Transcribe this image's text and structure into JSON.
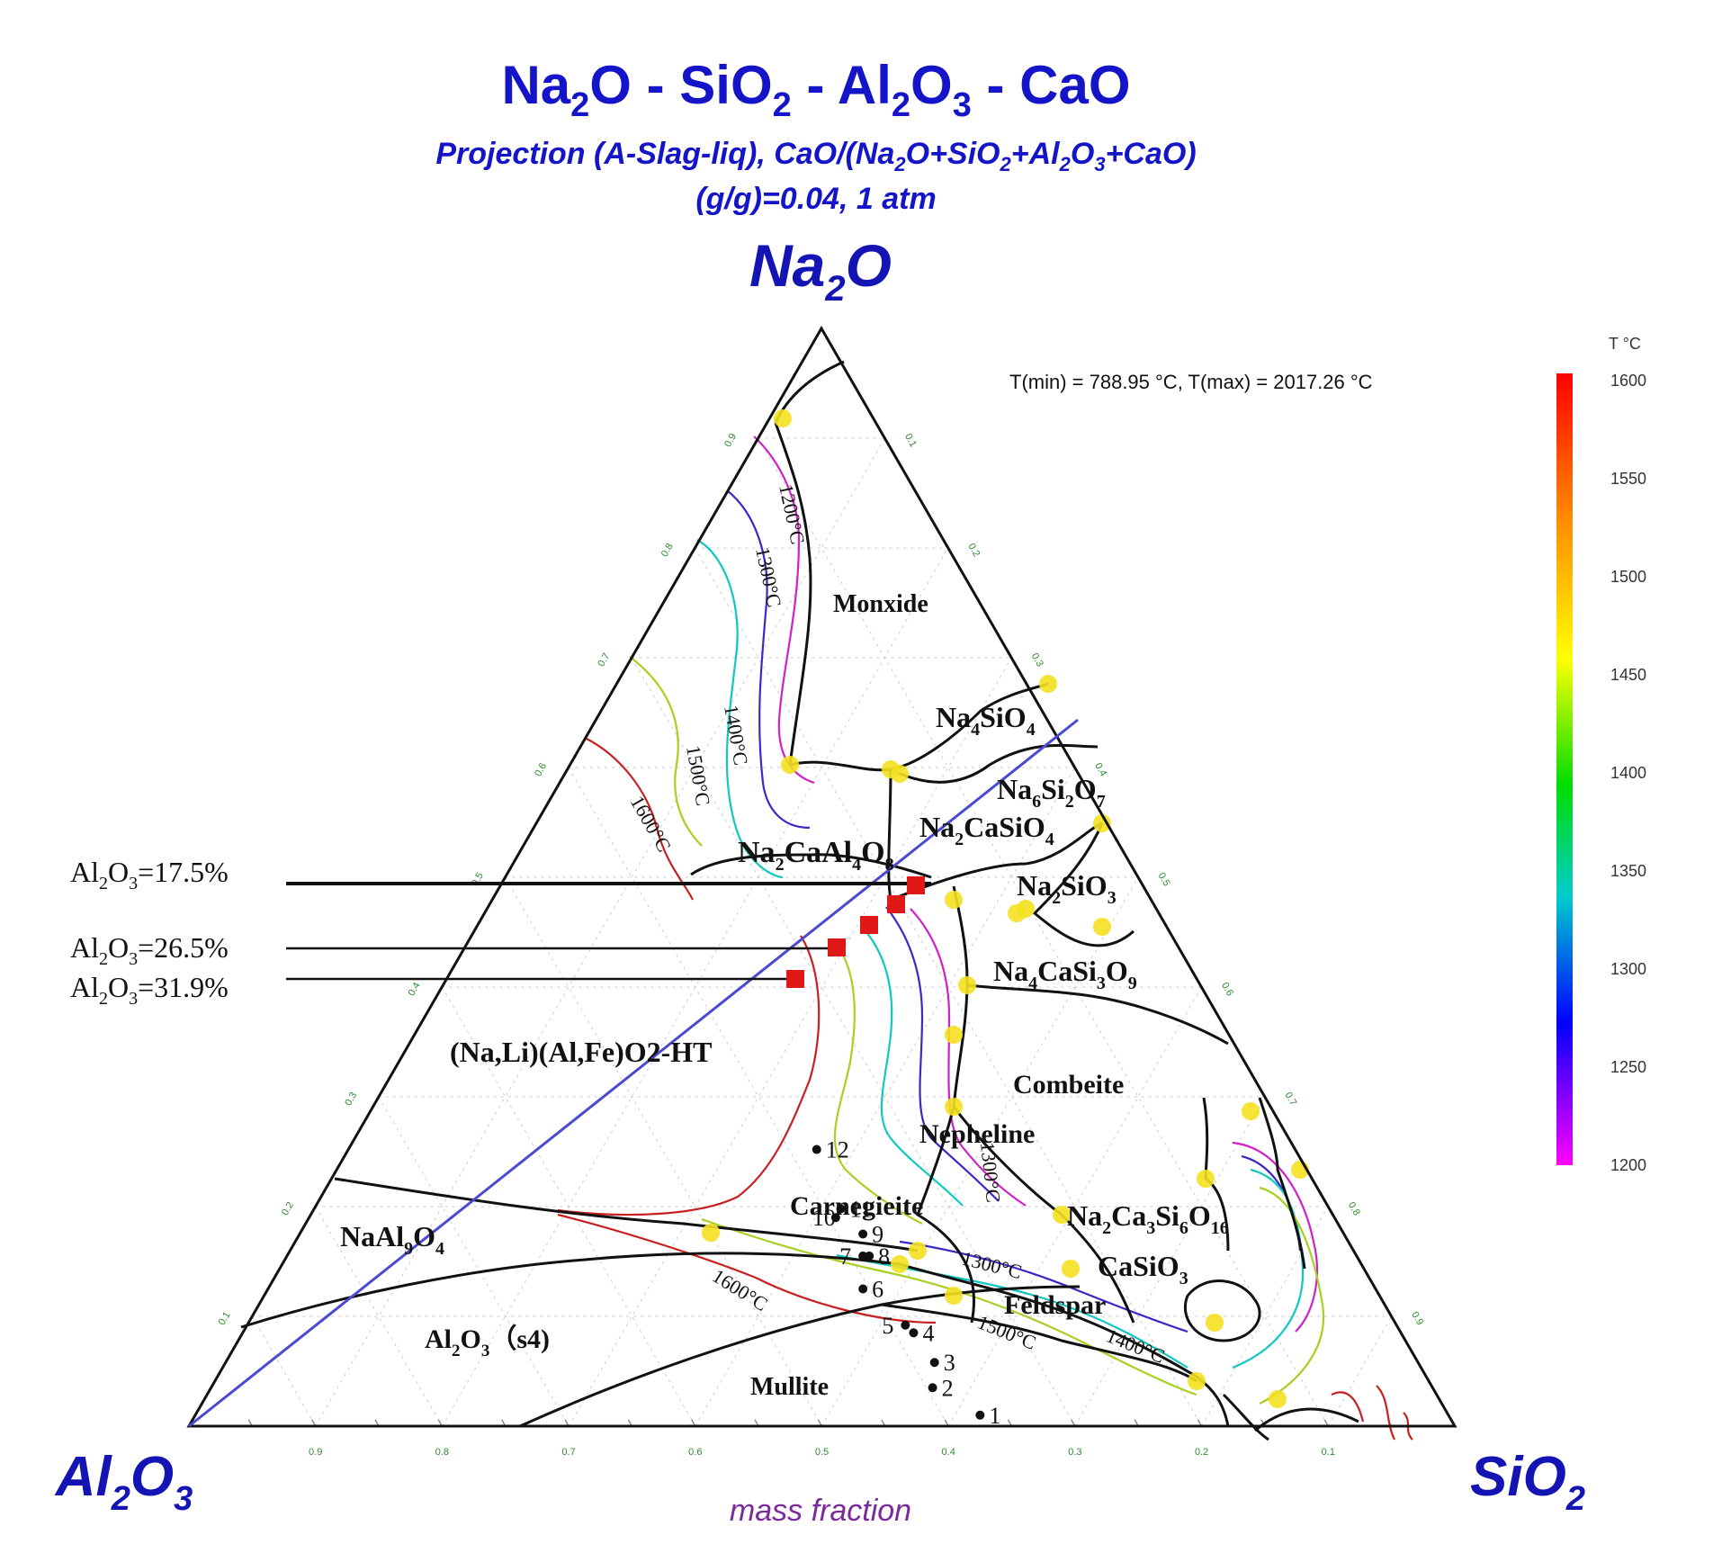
{
  "chart_data": {
    "type": "ternary-phase-diagram",
    "title": {
      "a": "Na",
      "a_sub": "2",
      "b": "O - SiO",
      "b_sub": "2",
      "c": " - Al",
      "c_sub": "2",
      "d": "O",
      "d_sub": "3",
      "e": " - CaO"
    },
    "subtitle_line1": {
      "p1": "Projection (A-Slag-liq), CaO/(Na",
      "s1": "2",
      "p2": "O+SiO",
      "s2": "2",
      "p3": "+Al",
      "s3": "2",
      "p4": "O",
      "s4": "3",
      "p5": "+CaO)"
    },
    "subtitle_line2": "(g/g)=0.04, 1 atm",
    "vertices": {
      "top": {
        "base": "Na",
        "sub": "2",
        "rest": "O"
      },
      "left": {
        "base": "Al",
        "sub": "2",
        "mid": "O",
        "sub2": "3"
      },
      "right": {
        "base": "SiO",
        "sub": "2"
      }
    },
    "axis_label": "mass fraction",
    "tick_values": [
      "0.1",
      "0.2",
      "0.3",
      "0.4",
      "0.5",
      "0.6",
      "0.7",
      "0.8",
      "0.9"
    ],
    "temperature_info": "T(min) = 788.95 °C, T(max) = 2017.26 °C",
    "colorbar": {
      "title": "T °C",
      "ticks": [
        "1600",
        "1550",
        "1500",
        "1450",
        "1400",
        "1350",
        "1300",
        "1250",
        "1200"
      ],
      "colors": [
        "#ff0000",
        "#ff8800",
        "#ffff00",
        "#00dd00",
        "#00cccc",
        "#0000ff",
        "#ff00ff"
      ]
    },
    "alumina_references": [
      {
        "label": "Al",
        "sub": "2",
        "rest": "O",
        "sub2": "3",
        "value": "=17.5%"
      },
      {
        "label": "Al",
        "sub": "2",
        "rest": "O",
        "sub2": "3",
        "value": "=26.5%"
      },
      {
        "label": "Al",
        "sub": "2",
        "rest": "O",
        "sub2": "3",
        "value": "=31.9%"
      }
    ],
    "isotherm_labels": [
      "1200°C",
      "1300°C",
      "1400°C",
      "1500°C",
      "1600°C",
      "1600°C",
      "1300°C",
      "1500°C",
      "1400°C",
      "1300°C"
    ],
    "phase_labels": {
      "monoxide": "Monxide",
      "na4sio4": {
        "a": "Na",
        "s1": "4",
        "b": "SiO",
        "s2": "4"
      },
      "na6si2o7": {
        "a": "Na",
        "s1": "6",
        "b": "Si",
        "s2": "2",
        "c": "O",
        "s3": "7"
      },
      "na2casio4": {
        "a": "Na",
        "s1": "2",
        "b": "CaSiO",
        "s2": "4"
      },
      "na2caal4o8": {
        "a": "Na",
        "s1": "2",
        "b": "CaAl",
        "s2": "4",
        "c": "O",
        "s3": "8"
      },
      "na2sio3": {
        "a": "Na",
        "s1": "2",
        "b": "SiO",
        "s2": "3"
      },
      "na4casi3o9": {
        "a": "Na",
        "s1": "4",
        "b": "CaSi",
        "s2": "3",
        "c": "O",
        "s3": "9"
      },
      "nalialfe": "(Na,Li)(Al,Fe)O2-HT",
      "combeite": "Combeite",
      "nepheline": "Nepheline",
      "carnegieite": "Carnegieite",
      "na2ca3si6o16": {
        "a": "Na",
        "s1": "2",
        "b": "Ca",
        "s2": "3",
        "c": "Si",
        "s3": "6",
        "d": "O",
        "s4": "16"
      },
      "naal9o14": {
        "a": "NaAl",
        "s1": "9",
        "b": "O",
        "s2": "4"
      },
      "casio3": {
        "a": "CaSiO",
        "s1": "3"
      },
      "feldspar": "Feldspar",
      "al2o3s4": {
        "a": "Al",
        "s1": "2",
        "b": "O",
        "s2": "3",
        "c": "（s4)"
      },
      "mullite": "Mullite"
    },
    "sample_points": [
      {
        "label": "1",
        "sio2": 0.62,
        "na2o": 0.01
      },
      {
        "label": "2",
        "sio2": 0.57,
        "na2o": 0.035
      },
      {
        "label": "3",
        "sio2": 0.56,
        "na2o": 0.058
      },
      {
        "label": "4",
        "sio2": 0.53,
        "na2o": 0.085
      },
      {
        "label": "5",
        "sio2": 0.52,
        "na2o": 0.092
      },
      {
        "label": "6",
        "sio2": 0.47,
        "na2o": 0.125
      },
      {
        "label": "7",
        "sio2": 0.455,
        "na2o": 0.155
      },
      {
        "label": "8",
        "sio2": 0.46,
        "na2o": 0.155
      },
      {
        "label": "9",
        "sio2": 0.445,
        "na2o": 0.175
      },
      {
        "label": "10",
        "sio2": 0.416,
        "na2o": 0.19
      },
      {
        "label": "11",
        "sio2": 0.416,
        "na2o": 0.198
      },
      {
        "label": "12",
        "sio2": 0.37,
        "na2o": 0.252
      }
    ],
    "marked_points": [
      {
        "na2o": 0.43,
        "sio2": 0.39
      },
      {
        "na2o": 0.47,
        "sio2": 0.4
      },
      {
        "na2o": 0.5,
        "sio2": 0.39
      },
      {
        "na2o": 0.52,
        "sio2": 0.39
      }
    ]
  }
}
